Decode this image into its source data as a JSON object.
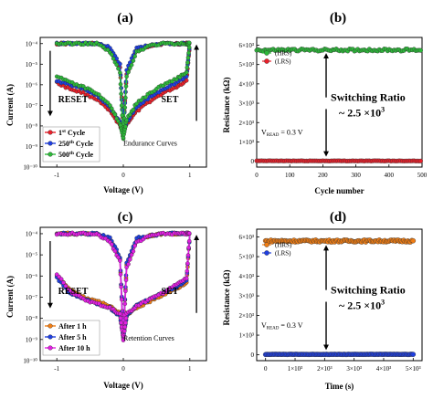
{
  "chart_data": [
    {
      "panel": "(a)",
      "type": "line",
      "xlabel": "Voltage (V)",
      "ylabel": "Current (A)",
      "xlim": [
        -1.25,
        1.25
      ],
      "ylog": true,
      "ylim_exp": [
        -10,
        -3.7
      ],
      "xticks": [
        -1,
        0,
        1
      ],
      "xtick_labels": [
        "-1",
        "0",
        "1"
      ],
      "ytick_exps": [
        -4,
        -5,
        -6,
        -7,
        -8,
        -9,
        -10
      ],
      "ytick_labels": [
        "10⁻⁴",
        "10⁻⁵",
        "10⁻⁶",
        "10⁻⁷",
        "10⁻⁸",
        "10⁻⁹",
        "10⁻¹⁰"
      ],
      "legend": {
        "position": "bottom-left",
        "entries": [
          {
            "prefix": "1",
            "sup": "st",
            "suffix": " Cycle"
          },
          {
            "prefix": "250",
            "sup": "th",
            "suffix": " Cycle"
          },
          {
            "prefix": "500",
            "sup": "th",
            "suffix": " Cycle"
          }
        ]
      },
      "series": [
        {
          "color": "#e8202a",
          "x": [
            -1.0,
            -0.8,
            -0.6,
            -0.4,
            -0.2,
            -0.05,
            0.0,
            0.05,
            0.2,
            0.4,
            0.6,
            0.8,
            0.95,
            1.0
          ],
          "y_upper_exp": [
            -4.0,
            -4.0,
            -4.0,
            -4.0,
            -4.3,
            -5.2,
            -8.1,
            -5.5,
            -4.3,
            -4.1,
            -4.0,
            -4.0,
            -4.0,
            -4.0
          ],
          "y_lower_exp": [
            -5.9,
            -6.2,
            -6.4,
            -6.7,
            -7.3,
            -8.0,
            -8.2,
            -7.9,
            -7.3,
            -6.8,
            -6.4,
            -6.1,
            -5.8,
            -4.0
          ]
        },
        {
          "color": "#1f3fe0",
          "x": [
            -1.0,
            -0.8,
            -0.6,
            -0.4,
            -0.2,
            -0.05,
            0.0,
            0.05,
            0.2,
            0.4,
            0.6,
            0.8,
            0.95,
            1.0
          ],
          "y_upper_exp": [
            -4.0,
            -4.0,
            -4.0,
            -4.0,
            -4.2,
            -5.0,
            -8.4,
            -5.3,
            -4.2,
            -4.1,
            -4.0,
            -4.0,
            -4.0,
            -4.0
          ],
          "y_lower_exp": [
            -5.8,
            -6.0,
            -6.2,
            -6.5,
            -7.1,
            -7.8,
            -8.4,
            -7.8,
            -7.1,
            -6.6,
            -6.2,
            -5.9,
            -5.6,
            -4.0
          ]
        },
        {
          "color": "#2db83a",
          "x": [
            -1.0,
            -0.8,
            -0.6,
            -0.4,
            -0.2,
            -0.05,
            0.0,
            0.05,
            0.2,
            0.4,
            0.6,
            0.8,
            0.95,
            1.0
          ],
          "y_upper_exp": [
            -4.0,
            -4.0,
            -4.0,
            -4.0,
            -4.4,
            -5.4,
            -8.6,
            -5.6,
            -4.4,
            -4.1,
            -4.0,
            -4.0,
            -4.0,
            -4.0
          ],
          "y_lower_exp": [
            -5.6,
            -5.9,
            -6.1,
            -6.4,
            -7.0,
            -7.9,
            -8.6,
            -7.7,
            -6.9,
            -6.4,
            -6.0,
            -5.7,
            -5.4,
            -4.0
          ]
        }
      ],
      "annotations": {
        "reset": "RESET",
        "set": "SET",
        "caption": "Endurance Curves"
      }
    },
    {
      "panel": "(b)",
      "type": "scatter",
      "xlabel": "Cycle number",
      "ylabel": "Resistance (kΩ)",
      "xlim": [
        0,
        500
      ],
      "ylim": [
        -300,
        6400
      ],
      "xticks": [
        0,
        100,
        200,
        300,
        400,
        500
      ],
      "xtick_labels": [
        "0",
        "100",
        "200",
        "300",
        "400",
        "500"
      ],
      "yticks": [
        0,
        1000,
        2000,
        3000,
        4000,
        5000,
        6000
      ],
      "ytick_labels": [
        "0",
        "1×10³",
        "2×10³",
        "3×10³",
        "4×10³",
        "5×10³",
        "6×10³"
      ],
      "legend": {
        "position": "top-left",
        "entries": [
          "(HRS)",
          "(LRS)"
        ]
      },
      "series": [
        {
          "name": "(HRS)",
          "color": "#2db83a",
          "n_points": 500,
          "base": 5750,
          "jitter": 60
        },
        {
          "name": "(LRS)",
          "color": "#e8202a",
          "n_points": 500,
          "base": 20,
          "jitter": 10
        }
      ],
      "annotations": {
        "vread_main": "V",
        "vread_sub": "READ",
        "vread_rest": " = 0.3 V",
        "ratio_title": "Switching Ratio",
        "ratio_value_pre": "~ 2.5 ×10",
        "ratio_value_sup": "3"
      }
    },
    {
      "panel": "(c)",
      "type": "line",
      "xlabel": "Voltage (V)",
      "ylabel": "Current (A)",
      "xlim": [
        -1.25,
        1.25
      ],
      "ylog": true,
      "ylim_exp": [
        -10,
        -3.7
      ],
      "xticks": [
        -1,
        0,
        1
      ],
      "xtick_labels": [
        "-1",
        "0",
        "1"
      ],
      "ytick_exps": [
        -4,
        -5,
        -6,
        -7,
        -8,
        -9,
        -10
      ],
      "ytick_labels": [
        "10⁻⁴",
        "10⁻⁵",
        "10⁻⁶",
        "10⁻⁷",
        "10⁻⁸",
        "10⁻⁹",
        "10⁻¹⁰"
      ],
      "legend": {
        "position": "bottom-left",
        "entries": [
          {
            "prefix": "After 1 h",
            "sup": "",
            "suffix": ""
          },
          {
            "prefix": "After 5 h",
            "sup": "",
            "suffix": ""
          },
          {
            "prefix": "After 10 h",
            "sup": "",
            "suffix": ""
          }
        ]
      },
      "series": [
        {
          "color": "#f07d14",
          "x": [
            -1.0,
            -0.8,
            -0.6,
            -0.4,
            -0.2,
            -0.05,
            0.0,
            0.05,
            0.2,
            0.4,
            0.6,
            0.8,
            0.95,
            1.0
          ],
          "y_upper_exp": [
            -4.0,
            -4.0,
            -4.0,
            -4.0,
            -4.3,
            -5.2,
            -8.8,
            -5.5,
            -4.3,
            -4.1,
            -4.0,
            -4.0,
            -4.0,
            -4.0
          ],
          "y_lower_exp": [
            -6.0,
            -6.6,
            -7.0,
            -7.2,
            -7.4,
            -7.8,
            -8.8,
            -7.9,
            -7.5,
            -7.2,
            -6.9,
            -6.6,
            -6.3,
            -4.0
          ]
        },
        {
          "color": "#1f3fe0",
          "x": [
            -1.0,
            -0.8,
            -0.6,
            -0.4,
            -0.2,
            -0.05,
            0.0,
            0.05,
            0.2,
            0.4,
            0.6,
            0.8,
            0.95,
            1.0
          ],
          "y_upper_exp": [
            -4.0,
            -4.0,
            -4.0,
            -4.0,
            -4.2,
            -5.1,
            -8.9,
            -5.4,
            -4.2,
            -4.1,
            -4.0,
            -4.0,
            -4.0,
            -4.0
          ],
          "y_lower_exp": [
            -6.1,
            -6.8,
            -7.1,
            -7.3,
            -7.5,
            -7.9,
            -8.9,
            -7.9,
            -7.4,
            -7.1,
            -6.8,
            -6.5,
            -6.2,
            -4.0
          ]
        },
        {
          "color": "#e020e0",
          "x": [
            -1.0,
            -0.8,
            -0.6,
            -0.4,
            -0.2,
            -0.05,
            0.0,
            0.05,
            0.2,
            0.4,
            0.6,
            0.8,
            0.95,
            1.0
          ],
          "y_upper_exp": [
            -4.0,
            -4.0,
            -4.0,
            -4.0,
            -4.4,
            -5.3,
            -9.0,
            -5.6,
            -4.4,
            -4.1,
            -4.0,
            -4.0,
            -4.0,
            -4.0
          ],
          "y_lower_exp": [
            -5.9,
            -6.7,
            -7.1,
            -7.3,
            -7.5,
            -7.8,
            -9.0,
            -7.8,
            -7.4,
            -7.1,
            -6.8,
            -6.4,
            -6.1,
            -4.0
          ]
        }
      ],
      "annotations": {
        "reset": "RESET",
        "set": "SET",
        "caption": "Retention Curves"
      }
    },
    {
      "panel": "(d)",
      "type": "scatter",
      "xlabel": "Time (s)",
      "ylabel": "Resistance (kΩ)",
      "xlim": [
        -300,
        5300
      ],
      "ylim": [
        -300,
        6400
      ],
      "xticks": [
        0,
        1000,
        2000,
        3000,
        4000,
        5000
      ],
      "xtick_labels": [
        "0",
        "1×10³",
        "2×10³",
        "3×10³",
        "4×10³",
        "5×10³"
      ],
      "yticks": [
        0,
        1000,
        2000,
        3000,
        4000,
        5000,
        6000
      ],
      "ytick_labels": [
        "0",
        "1×10³",
        "2×10³",
        "3×10³",
        "4×10³",
        "5×10³",
        "6×10³"
      ],
      "legend": {
        "position": "top-left",
        "entries": [
          "(HRS)",
          "(LRS)"
        ]
      },
      "series": [
        {
          "name": "(HRS)",
          "color": "#f07d14",
          "n_points": 110,
          "x_start": 0,
          "x_end": 5000,
          "base": 5800,
          "jitter": 50
        },
        {
          "name": "(LRS)",
          "color": "#1f3fe0",
          "n_points": 110,
          "x_start": 0,
          "x_end": 5000,
          "base": 20,
          "jitter": 8
        }
      ],
      "annotations": {
        "vread_main": "V",
        "vread_sub": "READ",
        "vread_rest": " = 0.3 V",
        "ratio_title": "Switching Ratio",
        "ratio_value_pre": "~ 2.5 ×10",
        "ratio_value_sup": "3"
      }
    }
  ]
}
